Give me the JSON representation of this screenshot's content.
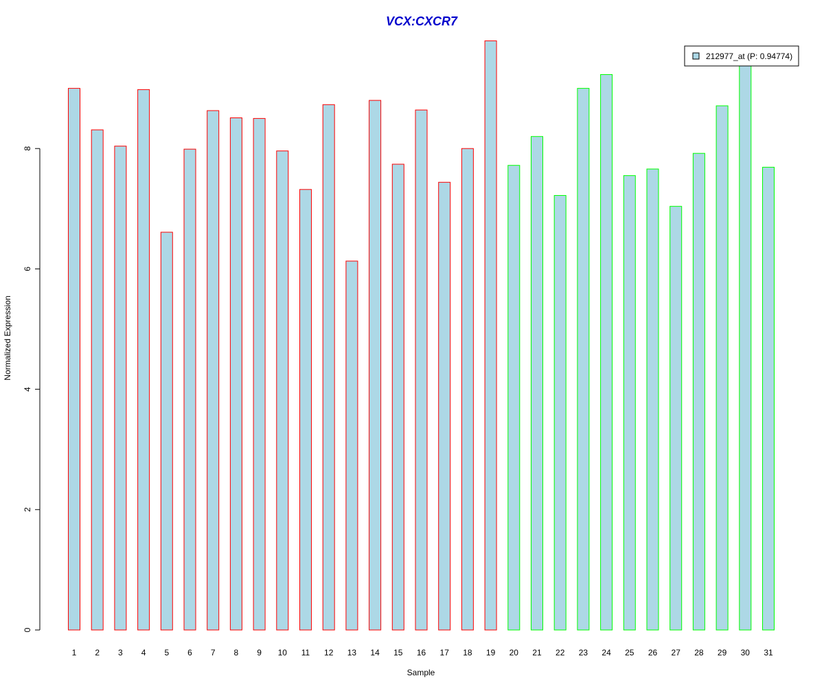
{
  "chart_data": {
    "type": "bar",
    "title": "VCX:CXCR7",
    "xlabel": "Sample",
    "ylabel": "Normalized Expression",
    "ylim": [
      0,
      9.8
    ],
    "yticks": [
      0,
      2,
      4,
      6,
      8
    ],
    "categories": [
      "1",
      "2",
      "3",
      "4",
      "5",
      "6",
      "7",
      "8",
      "9",
      "10",
      "11",
      "12",
      "13",
      "14",
      "15",
      "16",
      "17",
      "18",
      "19",
      "20",
      "21",
      "22",
      "23",
      "24",
      "25",
      "26",
      "27",
      "28",
      "29",
      "30",
      "31"
    ],
    "series": [
      {
        "name": "212977_at (P: 0.94774)",
        "values": [
          9.0,
          8.31,
          8.04,
          8.98,
          6.61,
          7.99,
          8.63,
          8.51,
          8.5,
          7.96,
          7.32,
          8.73,
          6.13,
          8.8,
          7.74,
          8.64,
          7.44,
          8.0,
          9.79,
          7.72,
          8.2,
          7.22,
          9.0,
          9.23,
          7.55,
          7.66,
          7.04,
          7.92,
          8.71,
          9.45,
          7.69
        ]
      }
    ],
    "bar_fill": "#add8e6",
    "group_border_colors": [
      "#ff0000",
      "#ff0000",
      "#ff0000",
      "#ff0000",
      "#ff0000",
      "#ff0000",
      "#ff0000",
      "#ff0000",
      "#ff0000",
      "#ff0000",
      "#ff0000",
      "#ff0000",
      "#ff0000",
      "#ff0000",
      "#ff0000",
      "#ff0000",
      "#ff0000",
      "#ff0000",
      "#ff0000",
      "#00ff00",
      "#00ff00",
      "#00ff00",
      "#00ff00",
      "#00ff00",
      "#00ff00",
      "#00ff00",
      "#00ff00",
      "#00ff00",
      "#00ff00",
      "#00ff00",
      "#00ff00"
    ],
    "title_color": "#0000cc",
    "legend": {
      "label": "212977_at (P: 0.94774)",
      "placement": "top-right"
    },
    "grid": false
  }
}
